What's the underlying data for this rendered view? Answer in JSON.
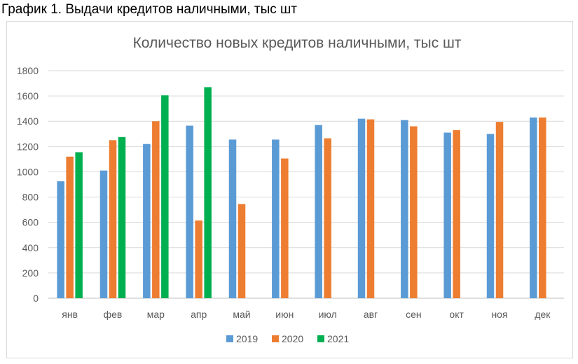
{
  "caption": "График 1. Выдачи кредитов наличными, тыс шт",
  "chart_data": {
    "type": "bar",
    "title": "Количество новых кредитов наличными, тыс шт",
    "xlabel": "",
    "ylabel": "",
    "categories": [
      "янв",
      "фев",
      "мар",
      "апр",
      "май",
      "июн",
      "июл",
      "авг",
      "сен",
      "окт",
      "ноя",
      "дек"
    ],
    "series": [
      {
        "name": "2019",
        "color": "#5b9bd5",
        "values": [
          925,
          1010,
          1220,
          1365,
          1255,
          1255,
          1370,
          1420,
          1410,
          1310,
          1300,
          1430
        ]
      },
      {
        "name": "2020",
        "color": "#ed7d31",
        "values": [
          1120,
          1250,
          1400,
          615,
          745,
          1105,
          1265,
          1415,
          1360,
          1330,
          1395,
          1430
        ]
      },
      {
        "name": "2021",
        "color": "#00b050",
        "values": [
          1155,
          1275,
          1605,
          1670,
          null,
          null,
          null,
          null,
          null,
          null,
          null,
          null
        ]
      }
    ],
    "ylim": [
      0,
      1800
    ],
    "yticks": [
      0,
      200,
      400,
      600,
      800,
      1000,
      1200,
      1400,
      1600,
      1800
    ],
    "grid": true,
    "legend_position": "bottom"
  }
}
